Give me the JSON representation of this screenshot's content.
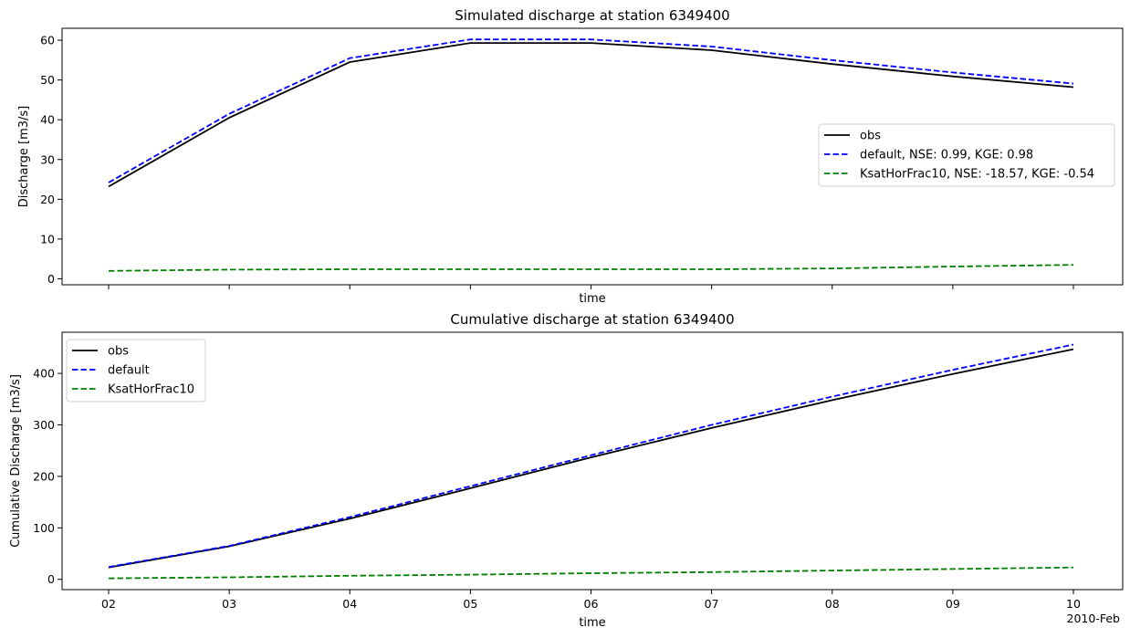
{
  "chart_data": [
    {
      "type": "line",
      "title": "Simulated discharge at station 6349400",
      "xlabel": "time",
      "ylabel": "Discharge [m3/s]",
      "x": [
        "2010-02-02",
        "2010-02-03",
        "2010-02-04",
        "2010-02-05",
        "2010-02-06",
        "2010-02-07",
        "2010-02-08",
        "2010-02-09",
        "2010-02-10"
      ],
      "ylim": [
        -1.5,
        63
      ],
      "yticks": [
        0,
        10,
        20,
        30,
        40,
        50,
        60
      ],
      "legend_position": "center-right",
      "series": [
        {
          "name": "obs",
          "color": "#000000",
          "style": "solid",
          "values": [
            23.2,
            40.5,
            54.5,
            59.3,
            59.3,
            57.5,
            54.0,
            50.9,
            48.2
          ]
        },
        {
          "name": "default, NSE: 0.99, KGE: 0.98",
          "color": "#0000ff",
          "style": "dashed",
          "values": [
            24.2,
            41.5,
            55.5,
            60.2,
            60.2,
            58.4,
            55.0,
            51.9,
            49.1
          ]
        },
        {
          "name": "KsatHorFrac10, NSE: -18.57, KGE: -0.54",
          "color": "#008000",
          "style": "dashed",
          "values": [
            2.0,
            2.3,
            2.4,
            2.4,
            2.4,
            2.4,
            2.6,
            3.1,
            3.5
          ]
        }
      ]
    },
    {
      "type": "line",
      "title": "Cumulative discharge at station 6349400",
      "xlabel": "time",
      "ylabel": "Cumulative Discharge [m3/s]",
      "x": [
        "2010-02-02",
        "2010-02-03",
        "2010-02-04",
        "2010-02-05",
        "2010-02-06",
        "2010-02-07",
        "2010-02-08",
        "2010-02-09",
        "2010-02-10"
      ],
      "xticks": [
        "02",
        "03",
        "04",
        "05",
        "06",
        "07",
        "08",
        "09",
        "10"
      ],
      "xtick_suffix": "2010-Feb",
      "ylim": [
        -20,
        480
      ],
      "yticks": [
        0,
        100,
        200,
        300,
        400
      ],
      "legend_position": "upper-left",
      "series": [
        {
          "name": "obs",
          "color": "#000000",
          "style": "solid",
          "values": [
            23,
            64,
            118,
            177,
            237,
            294,
            348,
            399,
            447
          ]
        },
        {
          "name": "default",
          "color": "#0000ff",
          "style": "dashed",
          "values": [
            24,
            65,
            121,
            181,
            241,
            300,
            355,
            407,
            456
          ]
        },
        {
          "name": "KsatHorFrac10",
          "color": "#008000",
          "style": "dashed",
          "values": [
            2,
            4,
            7,
            9,
            12,
            14,
            17,
            20,
            23
          ]
        }
      ]
    }
  ]
}
